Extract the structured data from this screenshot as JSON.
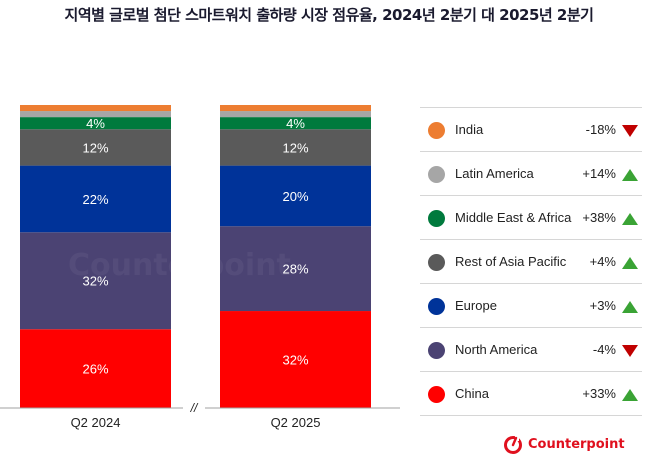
{
  "title": "지역별 글로벌 첨단 스마트워치 출하량 시장 점유율, 2024년 2분기 대 2025년 2분기",
  "chart_data": {
    "type": "bar",
    "stacked": true,
    "title": "지역별 글로벌 첨단 스마트워치 출하량 시장 점유율, 2024년 2분기 대 2025년 2분기",
    "categories": [
      "Q2 2024",
      "Q2 2025"
    ],
    "axis_break_symbol": "//",
    "series": [
      {
        "name": "China",
        "color": "#ff0000",
        "values": [
          26,
          32
        ],
        "labels": [
          "26%",
          "32%"
        ]
      },
      {
        "name": "North America",
        "color": "#4b4373",
        "values": [
          32,
          28
        ],
        "labels": [
          "32%",
          "28%"
        ]
      },
      {
        "name": "Europe",
        "color": "#003399",
        "values": [
          22,
          20
        ],
        "labels": [
          "22%",
          "20%"
        ]
      },
      {
        "name": "Rest of Asia Pacific",
        "color": "#5a5a5a",
        "values": [
          12,
          12
        ],
        "labels": [
          "12%",
          "12%"
        ]
      },
      {
        "name": "Middle East & Africa",
        "color": "#007a3d",
        "values": [
          4,
          4
        ],
        "labels": [
          "4%",
          "4%"
        ]
      },
      {
        "name": "Latin America",
        "color": "#a6a6a6",
        "values": [
          2,
          2
        ],
        "labels": [
          "",
          ""
        ]
      },
      {
        "name": "India",
        "color": "#ed7d31",
        "values": [
          2,
          2
        ],
        "labels": [
          "",
          ""
        ]
      }
    ],
    "ylim": [
      0,
      100
    ],
    "xlabel": "",
    "ylabel": ""
  },
  "legend": [
    {
      "name": "India",
      "change": "-18%",
      "direction": "down",
      "color": "#ed7d31"
    },
    {
      "name": "Latin America",
      "change": "+14%",
      "direction": "up",
      "color": "#a6a6a6"
    },
    {
      "name": "Middle East & Africa",
      "change": "+38%",
      "direction": "up",
      "color": "#007a3d"
    },
    {
      "name": "Rest of Asia Pacific",
      "change": "+4%",
      "direction": "up",
      "color": "#5a5a5a"
    },
    {
      "name": "Europe",
      "change": "+3%",
      "direction": "up",
      "color": "#003399"
    },
    {
      "name": "North America",
      "change": "-4%",
      "direction": "down",
      "color": "#4b4373"
    },
    {
      "name": "China",
      "change": "+33%",
      "direction": "up",
      "color": "#ff0000"
    }
  ],
  "brand": {
    "name": "Counterpoint",
    "color": "#e0101e"
  }
}
